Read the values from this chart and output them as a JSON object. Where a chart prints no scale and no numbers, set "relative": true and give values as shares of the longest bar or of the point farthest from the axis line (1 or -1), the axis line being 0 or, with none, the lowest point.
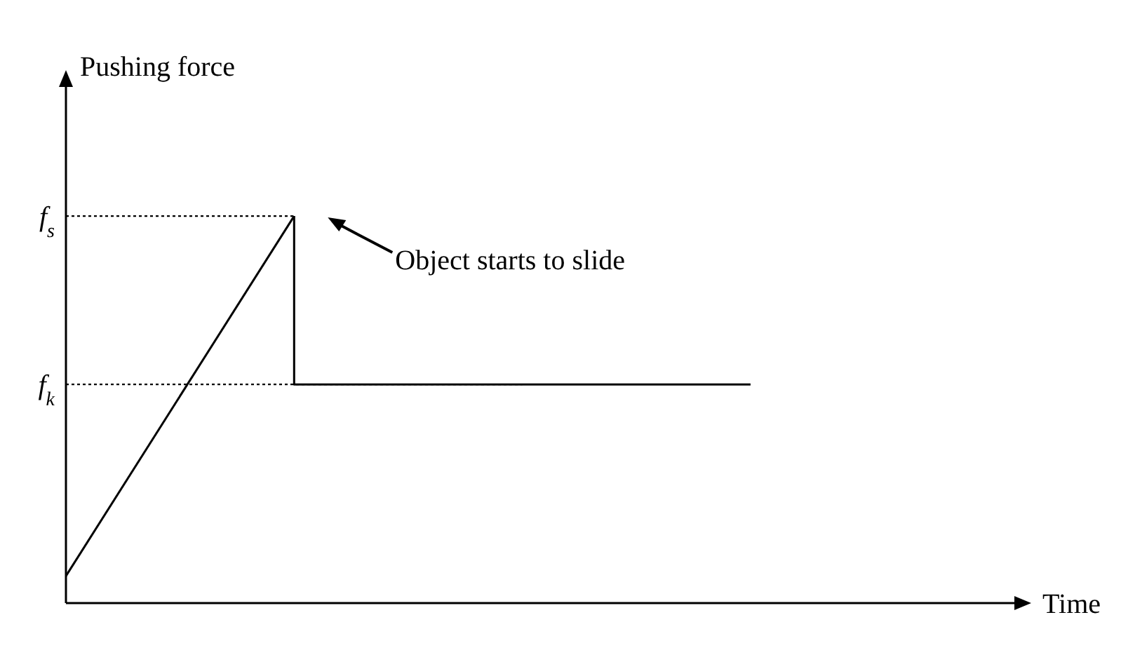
{
  "chart_data": {
    "type": "line",
    "relative": true,
    "xlabel": "Time",
    "ylabel": "Pushing force",
    "tick_labels": false,
    "marker": "none",
    "line_style": "solid",
    "categories": [
      null,
      null,
      null,
      null
    ],
    "series": [
      {
        "color": "#000000",
        "values": [
          0.07,
          1,
          null,
          null
        ]
      },
      {
        "type": "step",
        "color": "#000000",
        "values": [
          null,
          1,
          0.565,
          0.565
        ]
      }
    ],
    "ref_lines": [
      {
        "axis": "y",
        "value": 1,
        "label": "f$_{s}$",
        "line_style": "dotted",
        "color": "#000000"
      },
      {
        "axis": "y",
        "value": 0.565,
        "label": "f$_{k}$",
        "line_style": "dotted",
        "color": "#000000"
      }
    ],
    "annotations": [
      "Object starts to slide"
    ]
  }
}
